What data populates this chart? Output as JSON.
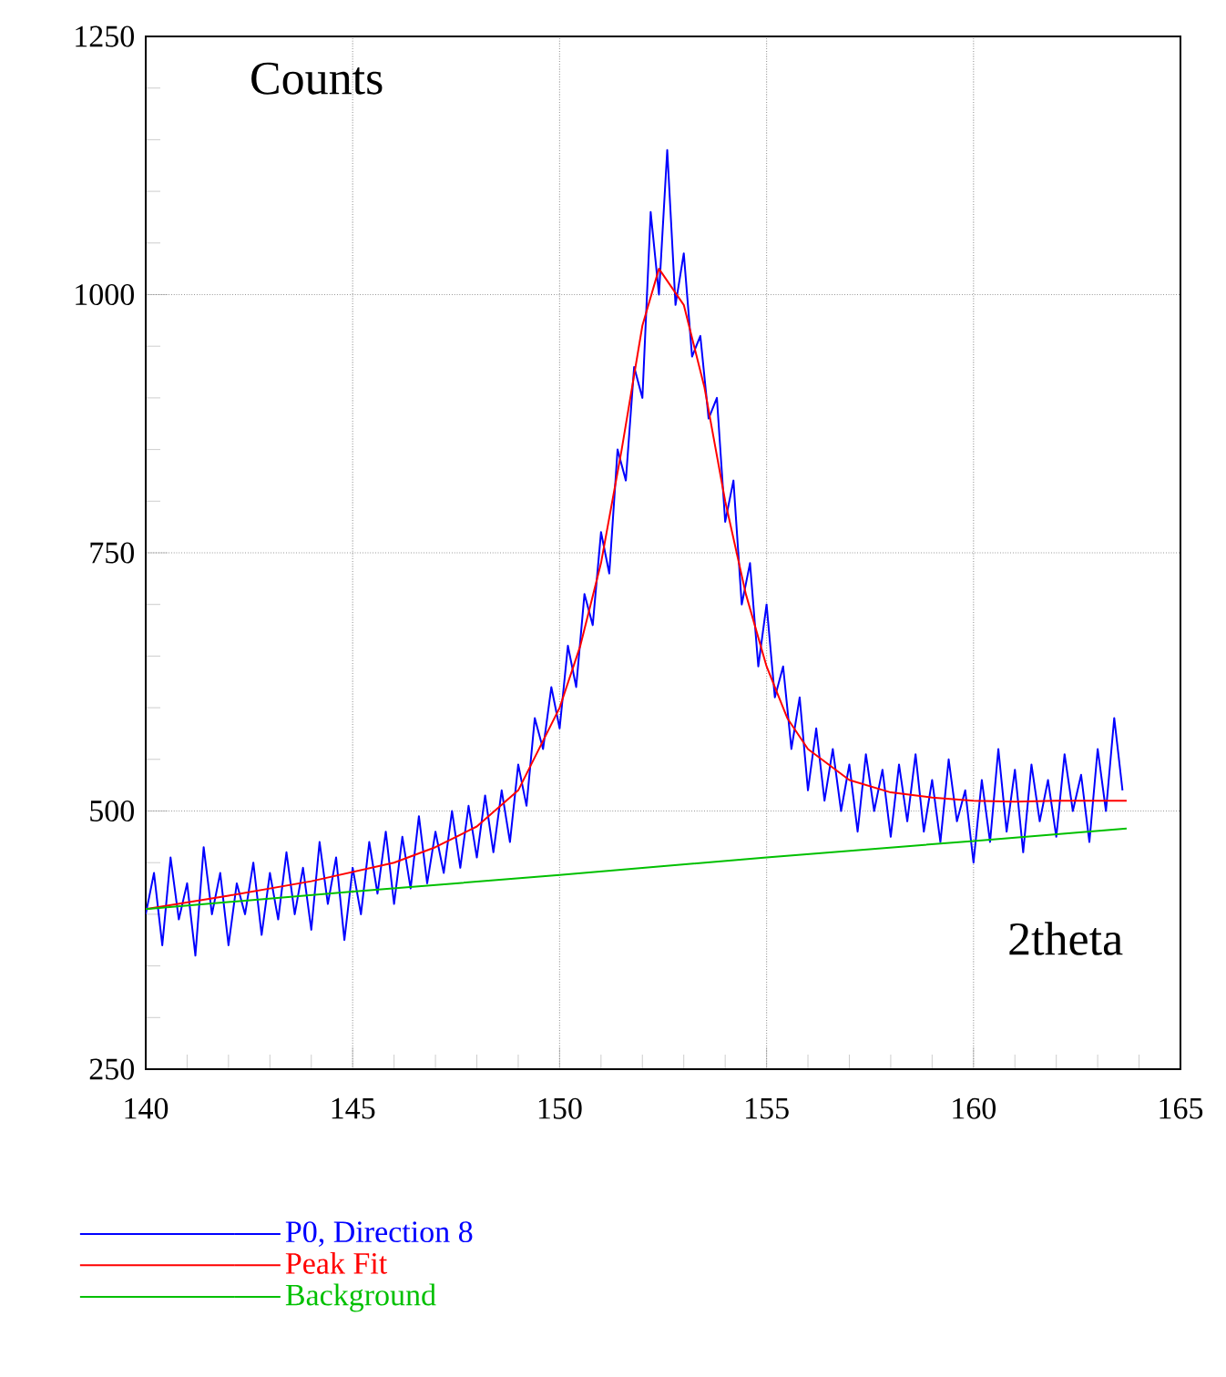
{
  "chart_data": {
    "type": "line",
    "xlabel": "2theta",
    "ylabel": "Counts",
    "xlim": [
      140,
      165
    ],
    "ylim": [
      250,
      1250
    ],
    "xticks": [
      140,
      145,
      150,
      155,
      160,
      165
    ],
    "yticks": [
      250,
      500,
      750,
      1000,
      1250
    ],
    "grid": true,
    "legend": "bottom left",
    "series": [
      {
        "name": "P0, Direction 8",
        "color": "#0000ff",
        "x": [
          140.0,
          140.2,
          140.4,
          140.6,
          140.8,
          141.0,
          141.2,
          141.4,
          141.6,
          141.8,
          142.0,
          142.2,
          142.4,
          142.6,
          142.8,
          143.0,
          143.2,
          143.4,
          143.6,
          143.8,
          144.0,
          144.2,
          144.4,
          144.6,
          144.8,
          145.0,
          145.2,
          145.4,
          145.6,
          145.8,
          146.0,
          146.2,
          146.4,
          146.6,
          146.8,
          147.0,
          147.2,
          147.4,
          147.6,
          147.8,
          148.0,
          148.2,
          148.4,
          148.6,
          148.8,
          149.0,
          149.2,
          149.4,
          149.6,
          149.8,
          150.0,
          150.2,
          150.4,
          150.6,
          150.8,
          151.0,
          151.2,
          151.4,
          151.6,
          151.8,
          152.0,
          152.2,
          152.4,
          152.6,
          152.8,
          153.0,
          153.2,
          153.4,
          153.6,
          153.8,
          154.0,
          154.2,
          154.4,
          154.6,
          154.8,
          155.0,
          155.2,
          155.4,
          155.6,
          155.8,
          156.0,
          156.2,
          156.4,
          156.6,
          156.8,
          157.0,
          157.2,
          157.4,
          157.6,
          157.8,
          158.0,
          158.2,
          158.4,
          158.6,
          158.8,
          159.0,
          159.2,
          159.4,
          159.6,
          159.8,
          160.0,
          160.2,
          160.4,
          160.6,
          160.8,
          161.0,
          161.2,
          161.4,
          161.6,
          161.8,
          162.0,
          162.2,
          162.4,
          162.6,
          162.8,
          163.0,
          163.2,
          163.4,
          163.6
        ],
        "values": [
          400,
          440,
          370,
          455,
          395,
          430,
          360,
          465,
          400,
          440,
          370,
          430,
          400,
          450,
          380,
          440,
          395,
          460,
          400,
          445,
          385,
          470,
          410,
          455,
          375,
          445,
          400,
          470,
          420,
          480,
          410,
          475,
          425,
          495,
          430,
          480,
          440,
          500,
          445,
          505,
          455,
          515,
          460,
          520,
          470,
          545,
          505,
          590,
          560,
          620,
          580,
          660,
          620,
          710,
          680,
          770,
          730,
          850,
          820,
          930,
          900,
          1080,
          1000,
          1140,
          990,
          1040,
          940,
          960,
          880,
          900,
          780,
          820,
          700,
          740,
          640,
          700,
          610,
          640,
          560,
          610,
          520,
          580,
          510,
          560,
          500,
          545,
          480,
          555,
          500,
          540,
          475,
          545,
          490,
          555,
          480,
          530,
          470,
          550,
          490,
          520,
          450,
          530,
          470,
          560,
          480,
          540,
          460,
          545,
          490,
          530,
          475,
          555,
          500,
          535,
          470,
          560,
          500,
          590,
          520
        ]
      },
      {
        "name": "Peak Fit",
        "color": "#ff0000",
        "x": [
          140,
          142,
          144,
          146,
          147,
          148,
          149,
          150,
          150.5,
          151,
          151.5,
          152,
          152.4,
          153,
          153.5,
          154,
          154.5,
          155,
          155.5,
          156,
          157,
          158,
          159,
          160,
          161,
          162,
          163,
          163.7
        ],
        "values": [
          405,
          418,
          432,
          450,
          465,
          485,
          520,
          600,
          660,
          740,
          850,
          970,
          1025,
          990,
          910,
          800,
          710,
          640,
          590,
          560,
          530,
          518,
          513,
          510,
          509,
          510,
          510,
          510
        ]
      },
      {
        "name": "Background",
        "color": "#00c000",
        "x": [
          140,
          145,
          150,
          155,
          160,
          163.7
        ],
        "values": [
          405,
          422,
          438,
          455,
          471,
          483
        ]
      }
    ]
  }
}
